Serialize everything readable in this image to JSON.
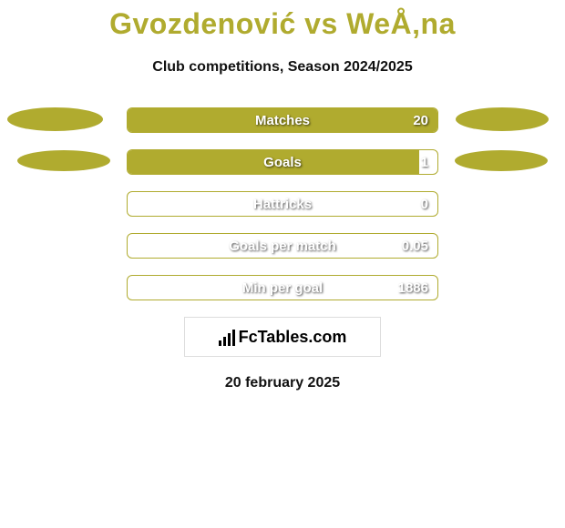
{
  "header": {
    "title": "Gvozdenović vs WeÅ‚na",
    "subtitle": "Club competitions, Season 2024/2025"
  },
  "chart": {
    "track_width": 342,
    "track_height": 28,
    "border_color": "#b0ab2f",
    "fill_color": "#b0ab2f",
    "text_color": "#ffffff",
    "font_size": 15,
    "stats": [
      {
        "label": "Matches",
        "value": "20",
        "fill_pct": 100
      },
      {
        "label": "Goals",
        "value": "1",
        "fill_pct": 94
      },
      {
        "label": "Hattricks",
        "value": "0",
        "fill_pct": 0
      },
      {
        "label": "Goals per match",
        "value": "0.05",
        "fill_pct": 0
      },
      {
        "label": "Min per goal",
        "value": "1886",
        "fill_pct": 0
      }
    ]
  },
  "ellipses": {
    "color": "#b0ab2f"
  },
  "logo": {
    "text": "FcTables.com"
  },
  "footer": {
    "date": "20 february 2025"
  },
  "colors": {
    "accent": "#b0ab2f",
    "background": "#ffffff",
    "text_dark": "#111111"
  }
}
